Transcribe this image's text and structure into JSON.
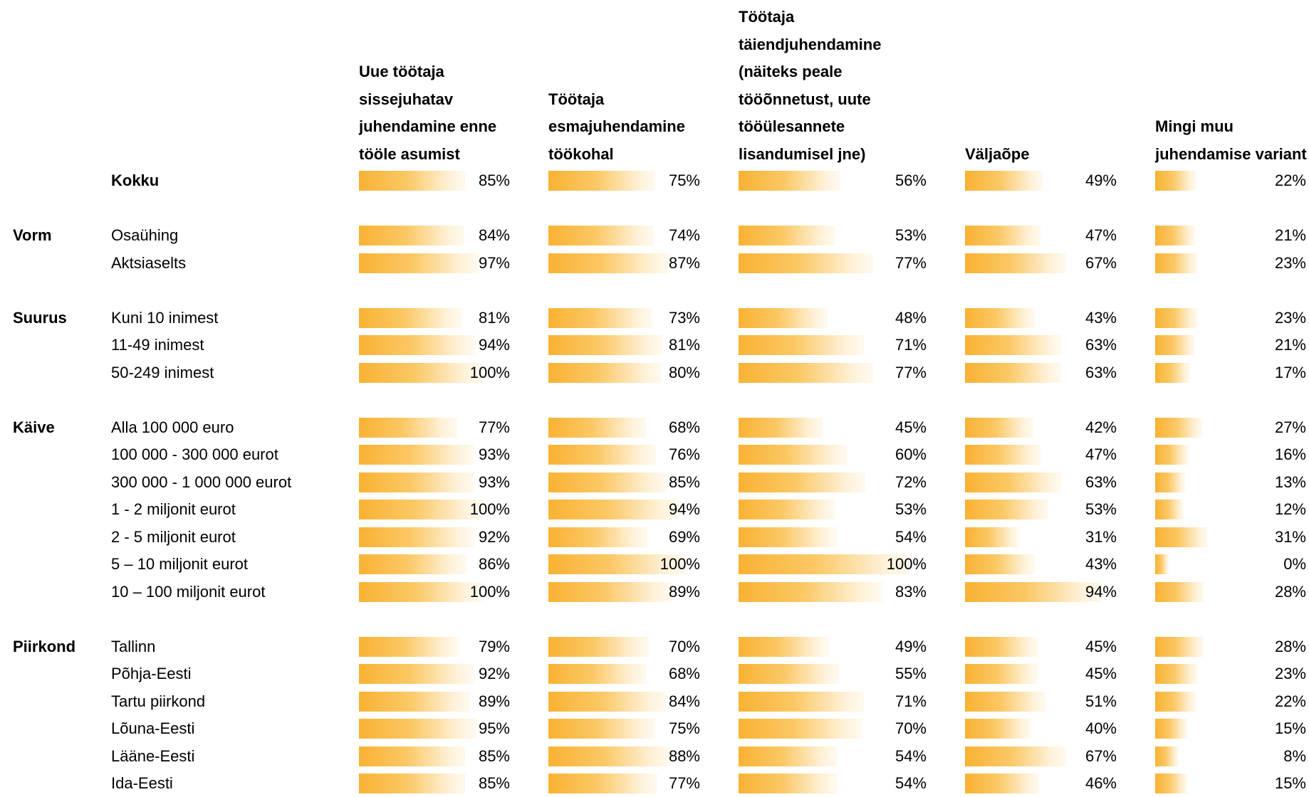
{
  "columns": [
    "Uue töötaja sissejuhatav juhendamine enne tööle asumist",
    "Töötaja esmajuhendamine töökohal",
    "Töötaja täiendjuhendamine (näiteks peale tööõnnetust, uute tööülesannete lisandumisel jne)",
    "Väljaõpe",
    "Mingi muu juhendamise variant"
  ],
  "total": {
    "label": "Kokku",
    "values": [
      85,
      75,
      56,
      49,
      22
    ],
    "value_labels": [
      "85%",
      "75%",
      "56%",
      "49%",
      "22%"
    ]
  },
  "groups": [
    {
      "name": "Vorm",
      "rows": [
        {
          "label": "Osaühing",
          "values": [
            84,
            74,
            53,
            47,
            21
          ],
          "value_labels": [
            "84%",
            "74%",
            "53%",
            "47%",
            "21%"
          ]
        },
        {
          "label": "Aktsiaselts",
          "values": [
            97,
            87,
            77,
            67,
            23
          ],
          "value_labels": [
            "97%",
            "87%",
            "77%",
            "67%",
            "23%"
          ]
        }
      ]
    },
    {
      "name": "Suurus",
      "rows": [
        {
          "label": "Kuni 10 inimest",
          "values": [
            81,
            73,
            48,
            43,
            23
          ],
          "value_labels": [
            "81%",
            "73%",
            "48%",
            "43%",
            "23%"
          ]
        },
        {
          "label": "11-49 inimest",
          "values": [
            94,
            81,
            71,
            63,
            21
          ],
          "value_labels": [
            "94%",
            "81%",
            "71%",
            "63%",
            "21%"
          ]
        },
        {
          "label": "50-249 inimest",
          "values": [
            100,
            80,
            77,
            63,
            17
          ],
          "value_labels": [
            "100%",
            "80%",
            "77%",
            "63%",
            "17%"
          ]
        }
      ]
    },
    {
      "name": "Käive",
      "rows": [
        {
          "label": "Alla 100 000 euro",
          "values": [
            77,
            68,
            45,
            42,
            27
          ],
          "value_labels": [
            "77%",
            "68%",
            "45%",
            "42%",
            "27%"
          ]
        },
        {
          "label": "100 000 - 300 000 eurot",
          "values": [
            93,
            76,
            60,
            47,
            16
          ],
          "value_labels": [
            "93%",
            "76%",
            "60%",
            "47%",
            "16%"
          ]
        },
        {
          "label": "300 000 - 1 000 000 eurot",
          "values": [
            93,
            85,
            72,
            63,
            13
          ],
          "value_labels": [
            "93%",
            "85%",
            "72%",
            "63%",
            "13%"
          ]
        },
        {
          "label": "1 - 2 miljonit eurot",
          "values": [
            100,
            94,
            53,
            53,
            12
          ],
          "value_labels": [
            "100%",
            "94%",
            "53%",
            "53%",
            "12%"
          ]
        },
        {
          "label": "2 - 5 miljonit eurot",
          "values": [
            92,
            69,
            54,
            31,
            31
          ],
          "value_labels": [
            "92%",
            "69%",
            "54%",
            "31%",
            "31%"
          ]
        },
        {
          "label": "5 – 10 miljonit eurot",
          "values": [
            86,
            100,
            100,
            43,
            0
          ],
          "value_labels": [
            "86%",
            "100%",
            "100%",
            "43%",
            "0%"
          ]
        },
        {
          "label": "10 – 100 miljonit eurot",
          "values": [
            100,
            89,
            83,
            94,
            28
          ],
          "value_labels": [
            "100%",
            "89%",
            "83%",
            "94%",
            "28%"
          ]
        }
      ]
    },
    {
      "name": "Piirkond",
      "rows": [
        {
          "label": "Tallinn",
          "values": [
            79,
            70,
            49,
            45,
            28
          ],
          "value_labels": [
            "79%",
            "70%",
            "49%",
            "45%",
            "28%"
          ]
        },
        {
          "label": "Põhja-Eesti",
          "values": [
            92,
            68,
            55,
            45,
            23
          ],
          "value_labels": [
            "92%",
            "68%",
            "55%",
            "45%",
            "23%"
          ]
        },
        {
          "label": "Tartu piirkond",
          "values": [
            89,
            84,
            71,
            51,
            22
          ],
          "value_labels": [
            "89%",
            "84%",
            "71%",
            "51%",
            "22%"
          ]
        },
        {
          "label": "Lõuna-Eesti",
          "values": [
            95,
            75,
            70,
            40,
            15
          ],
          "value_labels": [
            "95%",
            "75%",
            "70%",
            "40%",
            "15%"
          ]
        },
        {
          "label": "Lääne-Eesti",
          "values": [
            85,
            88,
            54,
            67,
            8
          ],
          "value_labels": [
            "85%",
            "88%",
            "54%",
            "67%",
            "8%"
          ]
        },
        {
          "label": "Ida-Eesti",
          "values": [
            85,
            77,
            54,
            46,
            15
          ],
          "value_labels": [
            "85%",
            "77%",
            "54%",
            "46%",
            "15%"
          ]
        }
      ]
    }
  ]
}
